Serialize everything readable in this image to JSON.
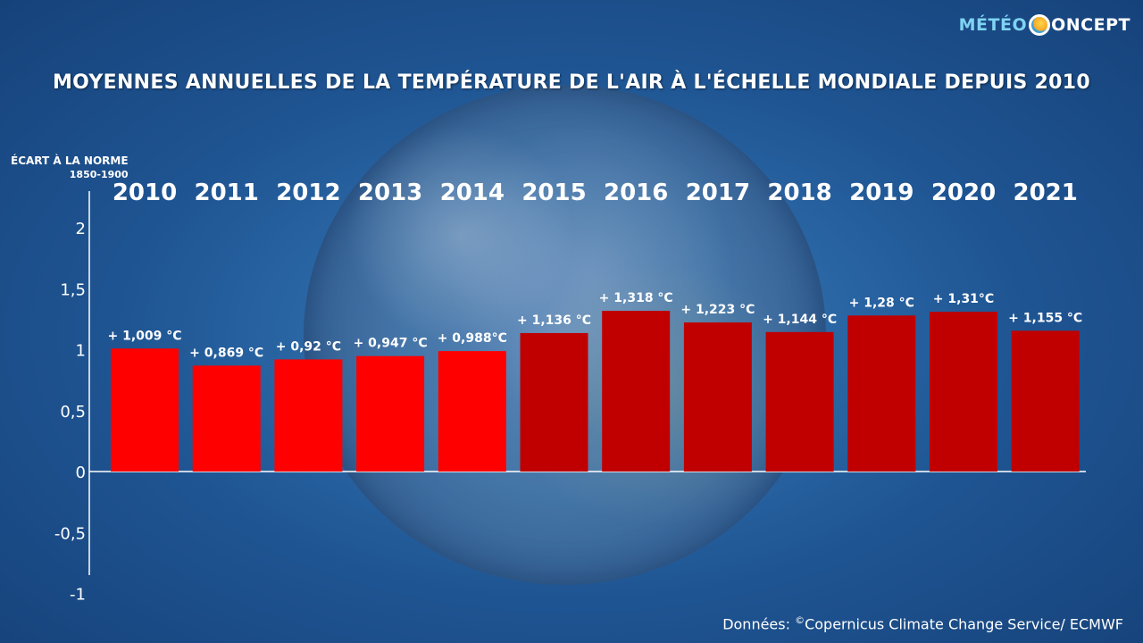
{
  "title": "MOYENNES ANNUELLES DE LA TEMPÉRATURE DE L'AIR À L'ÉCHELLE MONDIALE DEPUIS 2010",
  "logo": {
    "part1": "MÉTÉO",
    "part2": "ONCEPT"
  },
  "y_axis_label": {
    "line1": "ÉCART À LA NORME",
    "line2": "1850-1900"
  },
  "source": {
    "prefix": "Données: ",
    "copyright": "©",
    "text": "Copernicus Climate Change Service/ ECMWF"
  },
  "colors": {
    "bright_red": "#ff0000",
    "dark_red": "#c00000"
  },
  "chart_data": {
    "type": "bar",
    "categories": [
      "2010",
      "2011",
      "2012",
      "2013",
      "2014",
      "2015",
      "2016",
      "2017",
      "2018",
      "2019",
      "2020",
      "2021"
    ],
    "values": [
      1.009,
      0.869,
      0.92,
      0.947,
      0.988,
      1.136,
      1.318,
      1.223,
      1.144,
      1.28,
      1.31,
      1.155
    ],
    "labels": [
      "+ 1,009 °C",
      "+ 0,869 °C",
      "+ 0,92 °C",
      "+ 0,947 °C",
      "+ 0,988°C",
      "+ 1,136 °C",
      "+ 1,318 °C",
      "+ 1,223 °C",
      "+ 1,144 °C",
      "+ 1,28 °C",
      "+ 1,31°C",
      "+ 1,155 °C"
    ],
    "bar_colors": [
      "bright_red",
      "bright_red",
      "bright_red",
      "bright_red",
      "bright_red",
      "dark_red",
      "dark_red",
      "dark_red",
      "dark_red",
      "dark_red",
      "dark_red",
      "dark_red"
    ],
    "yticks": [
      2,
      1.5,
      1,
      0.5,
      0,
      -0.5,
      -1
    ],
    "ytick_labels": [
      "2",
      "1,5",
      "1",
      "0,5",
      "0",
      "-0,5",
      "-1"
    ],
    "ylim": [
      -1,
      2.3
    ],
    "grid": false
  }
}
